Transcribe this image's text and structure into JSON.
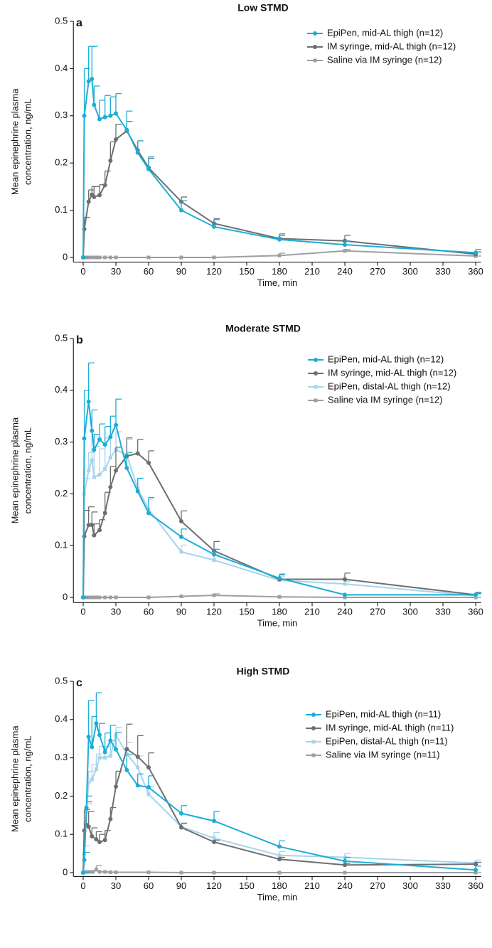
{
  "chart_data": [
    {
      "type": "line",
      "panel": "a",
      "title": "Low STMD",
      "xlabel": "Time, min",
      "ylabel": [
        "Mean epinephrine plasma",
        "concentration, ng/mL"
      ],
      "xlim": [
        -9,
        365
      ],
      "ylim": [
        -0.01,
        0.5
      ],
      "xticks": [
        0,
        30,
        60,
        90,
        120,
        150,
        180,
        210,
        240,
        270,
        300,
        330,
        360
      ],
      "yticks": [
        0,
        0.1,
        0.2,
        0.3,
        0.4,
        0.5
      ],
      "series": [
        {
          "name": "EpiPen, mid-AL thigh (n=12)",
          "color": "#1aaed6",
          "marker": "circle",
          "x": [
            0,
            1,
            5,
            8,
            10,
            15,
            20,
            25,
            30,
            40,
            50,
            60,
            90,
            120,
            180,
            240,
            360
          ],
          "values": [
            0,
            0.3,
            0.373,
            0.378,
            0.323,
            0.293,
            0.297,
            0.3,
            0.305,
            0.27,
            0.222,
            0.187,
            0.1,
            0.065,
            0.038,
            0.027,
            0.01
          ],
          "errors": [
            0,
            0.1,
            0.074,
            0.069,
            0.04,
            0.04,
            0.046,
            0.04,
            0.042,
            0.04,
            0.025,
            0.026,
            0.02,
            0.015,
            0.012,
            0.008,
            0.007
          ]
        },
        {
          "name": "IM syringe, mid-AL thigh (n=12)",
          "color": "#6d6e71",
          "marker": "circle",
          "x": [
            0,
            1,
            5,
            8,
            10,
            15,
            20,
            25,
            30,
            40,
            50,
            60,
            90,
            120,
            180,
            240,
            360
          ],
          "values": [
            0,
            0.06,
            0.118,
            0.133,
            0.128,
            0.132,
            0.153,
            0.205,
            0.25,
            0.268,
            0.227,
            0.19,
            0.118,
            0.072,
            0.04,
            0.035,
            0.007
          ],
          "errors": [
            0,
            0.025,
            0.025,
            0.017,
            0.022,
            0.022,
            0.03,
            0.04,
            0.032,
            0.02,
            0.02,
            0.02,
            0.01,
            0.01,
            0.007,
            0.012,
            0.005
          ]
        },
        {
          "name": "Saline via IM syringe (n=12)",
          "color": "#9d9fa2",
          "marker": "square",
          "x": [
            0,
            3,
            6,
            9,
            12,
            15,
            20,
            25,
            30,
            60,
            90,
            120,
            180,
            240,
            360
          ],
          "values": [
            0,
            0,
            0,
            0,
            0,
            0,
            0,
            0,
            0,
            0,
            0,
            0,
            0.004,
            0.014,
            0.003
          ],
          "errors": [
            0,
            0,
            0,
            0,
            0,
            0,
            0,
            0,
            0,
            0,
            0,
            0,
            0.005,
            0.003,
            0
          ]
        }
      ]
    },
    {
      "type": "line",
      "panel": "b",
      "title": "Moderate STMD",
      "xlabel": "Time, min",
      "ylabel": [
        "Mean epinephrine plasma",
        "concentration, ng/mL"
      ],
      "xlim": [
        -9,
        365
      ],
      "ylim": [
        -0.01,
        0.5
      ],
      "xticks": [
        0,
        30,
        60,
        90,
        120,
        150,
        180,
        210,
        240,
        270,
        300,
        330,
        360
      ],
      "yticks": [
        0,
        0.1,
        0.2,
        0.3,
        0.4,
        0.5
      ],
      "series": [
        {
          "name": "EpiPen, mid-AL thigh (n=12)",
          "color": "#1aaed6",
          "marker": "circle",
          "x": [
            0,
            1,
            5,
            8,
            10,
            15,
            20,
            25,
            30,
            40,
            50,
            60,
            90,
            120,
            180,
            240,
            360
          ],
          "values": [
            0,
            0.307,
            0.378,
            0.322,
            0.285,
            0.305,
            0.295,
            0.31,
            0.333,
            0.25,
            0.205,
            0.163,
            0.117,
            0.083,
            0.037,
            0.005,
            0.005
          ],
          "errors": [
            0,
            0.093,
            0.075,
            0.04,
            0.03,
            0.03,
            0.035,
            0.04,
            0.05,
            0.03,
            0.025,
            0.03,
            0.015,
            0.01,
            0.007,
            0,
            0.005
          ]
        },
        {
          "name": "IM syringe, mid-AL thigh (n=12)",
          "color": "#6d6e71",
          "marker": "circle",
          "x": [
            0,
            1,
            5,
            8,
            10,
            15,
            20,
            25,
            30,
            40,
            50,
            60,
            90,
            120,
            180,
            240,
            360
          ],
          "values": [
            0,
            0.118,
            0.14,
            0.14,
            0.12,
            0.13,
            0.163,
            0.213,
            0.245,
            0.273,
            0.278,
            0.26,
            0.147,
            0.09,
            0.035,
            0.035,
            0.005
          ],
          "errors": [
            0,
            0.05,
            0.035,
            0.025,
            0.022,
            0.02,
            0.04,
            0.04,
            0.045,
            0.035,
            0.027,
            0.023,
            0.02,
            0.018,
            0.01,
            0.012,
            0.003
          ]
        },
        {
          "name": "EpiPen, distal-AL thigh (n=12)",
          "color": "#a6d4ec",
          "marker": "square",
          "x": [
            0,
            1,
            5,
            8,
            10,
            15,
            20,
            25,
            30,
            40,
            50,
            60,
            90,
            120,
            180,
            240,
            360
          ],
          "values": [
            0,
            0.2,
            0.245,
            0.265,
            0.232,
            0.237,
            0.248,
            0.27,
            0.285,
            0.275,
            0.21,
            0.17,
            0.088,
            0.072,
            0.033,
            0.026,
            0.003
          ],
          "errors": [
            0,
            0.03,
            0.035,
            0.05,
            0.06,
            0.05,
            0.06,
            0.055,
            0.035,
            0.03,
            0.02,
            0.02,
            0.013,
            0.01,
            0.008,
            0.005,
            0.003
          ]
        },
        {
          "name": "Saline via IM syringe (n=12)",
          "color": "#9d9fa2",
          "marker": "square",
          "x": [
            0,
            3,
            6,
            9,
            12,
            15,
            20,
            25,
            30,
            60,
            90,
            120,
            180,
            240,
            360
          ],
          "values": [
            0,
            0,
            0,
            0,
            0,
            0,
            0,
            0,
            0,
            0,
            0.002,
            0.004,
            0.001,
            0,
            0
          ],
          "errors": [
            0,
            0,
            0,
            0,
            0,
            0,
            0,
            0,
            0,
            0,
            0,
            0.003,
            0,
            0,
            0
          ]
        }
      ]
    },
    {
      "type": "line",
      "panel": "c",
      "title": "High STMD",
      "xlabel": "Time, min",
      "ylabel": [
        "Mean epinephrine plasma",
        "concentration, ng/mL"
      ],
      "xlim": [
        -9,
        365
      ],
      "ylim": [
        -0.01,
        0.5
      ],
      "xticks": [
        0,
        30,
        60,
        90,
        120,
        150,
        180,
        210,
        240,
        270,
        300,
        330,
        360
      ],
      "yticks": [
        0,
        0.1,
        0.2,
        0.3,
        0.4,
        0.5
      ],
      "series": [
        {
          "name": "EpiPen, mid-AL thigh (n=11)",
          "color": "#1aaed6",
          "marker": "circle",
          "x": [
            0,
            1,
            3,
            5,
            8,
            12,
            15,
            20,
            25,
            30,
            40,
            50,
            60,
            90,
            120,
            180,
            240,
            360
          ],
          "values": [
            0,
            0.033,
            0.17,
            0.355,
            0.328,
            0.39,
            0.36,
            0.315,
            0.345,
            0.322,
            0.268,
            0.228,
            0.223,
            0.155,
            0.135,
            0.068,
            0.03,
            0.007
          ],
          "errors": [
            0,
            0.02,
            0.03,
            0.095,
            0.08,
            0.08,
            0.03,
            0.05,
            0.04,
            0.045,
            0.04,
            0.03,
            0.03,
            0.02,
            0.025,
            0.015,
            0.01,
            0.01
          ]
        },
        {
          "name": "IM syringe, mid-AL thigh (n=11)",
          "color": "#6d6e71",
          "marker": "circle",
          "x": [
            0,
            1,
            3,
            5,
            8,
            12,
            15,
            20,
            25,
            30,
            40,
            50,
            60,
            90,
            120,
            180,
            240,
            360
          ],
          "values": [
            0,
            0.11,
            0.125,
            0.12,
            0.095,
            0.087,
            0.08,
            0.085,
            0.14,
            0.225,
            0.323,
            0.303,
            0.275,
            0.118,
            0.08,
            0.035,
            0.02,
            0.022
          ],
          "errors": [
            0,
            0.055,
            0.06,
            0.04,
            0.022,
            0.02,
            0.02,
            0.025,
            0.03,
            0.04,
            0.065,
            0.055,
            0.038,
            0.01,
            0.005,
            0.005,
            0.004,
            0.005
          ]
        },
        {
          "name": "EpiPen, distal-AL thigh (n=11)",
          "color": "#a6d4ec",
          "marker": "square",
          "x": [
            0,
            1,
            3,
            5,
            8,
            12,
            15,
            20,
            25,
            30,
            40,
            50,
            60,
            90,
            120,
            180,
            240,
            360
          ],
          "values": [
            0,
            0.05,
            0.16,
            0.235,
            0.243,
            0.27,
            0.3,
            0.3,
            0.305,
            0.36,
            0.31,
            0.275,
            0.205,
            0.12,
            0.09,
            0.045,
            0.04,
            0.025
          ],
          "errors": [
            0,
            0.02,
            0.02,
            0.03,
            0.04,
            0.04,
            0.03,
            0.03,
            0.04,
            0.02,
            0.03,
            0.03,
            0.02,
            0.01,
            0.015,
            0.01,
            0.01,
            0.008
          ]
        },
        {
          "name": "Saline via IM syringe (n=11)",
          "color": "#9d9fa2",
          "marker": "square",
          "x": [
            0,
            3,
            6,
            9,
            12,
            15,
            20,
            25,
            30,
            60,
            90,
            120,
            180,
            240,
            360
          ],
          "values": [
            0,
            0.002,
            0.002,
            0.002,
            0.008,
            0.002,
            0.002,
            0.001,
            0.001,
            0.001,
            0,
            0,
            0,
            0,
            0
          ],
          "errors": [
            0,
            0.003,
            0.003,
            0.002,
            0.01,
            0,
            0,
            0,
            0,
            0,
            0,
            0,
            0,
            0,
            0
          ]
        }
      ]
    }
  ]
}
